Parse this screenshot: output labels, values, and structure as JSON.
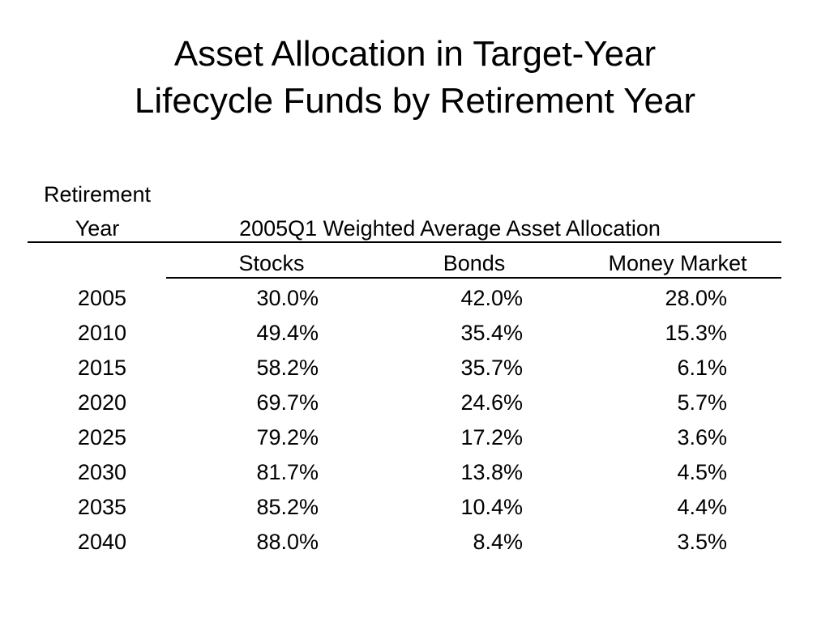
{
  "slide": {
    "title_line1": "Asset Allocation in Target-Year",
    "title_line2": "Lifecycle Funds by Retirement Year"
  },
  "table": {
    "row_header_line1": "Retirement",
    "row_header_line2": "Year",
    "group_header": "2005Q1 Weighted Average Asset Allocation",
    "columns": [
      "Stocks",
      "Bonds",
      "Money Market"
    ],
    "rows": [
      {
        "year": "2005",
        "stocks": "30.0%",
        "bonds": "42.0%",
        "money_market": "28.0%"
      },
      {
        "year": "2010",
        "stocks": "49.4%",
        "bonds": "35.4%",
        "money_market": "15.3%"
      },
      {
        "year": "2015",
        "stocks": "58.2%",
        "bonds": "35.7%",
        "money_market": "6.1%"
      },
      {
        "year": "2020",
        "stocks": "69.7%",
        "bonds": "24.6%",
        "money_market": "5.7%"
      },
      {
        "year": "2025",
        "stocks": "79.2%",
        "bonds": "17.2%",
        "money_market": "3.6%"
      },
      {
        "year": "2030",
        "stocks": "81.7%",
        "bonds": "13.8%",
        "money_market": "4.5%"
      },
      {
        "year": "2035",
        "stocks": "85.2%",
        "bonds": "10.4%",
        "money_market": "4.4%"
      },
      {
        "year": "2040",
        "stocks": "88.0%",
        "bonds": "8.4%",
        "money_market": "3.5%"
      }
    ]
  }
}
